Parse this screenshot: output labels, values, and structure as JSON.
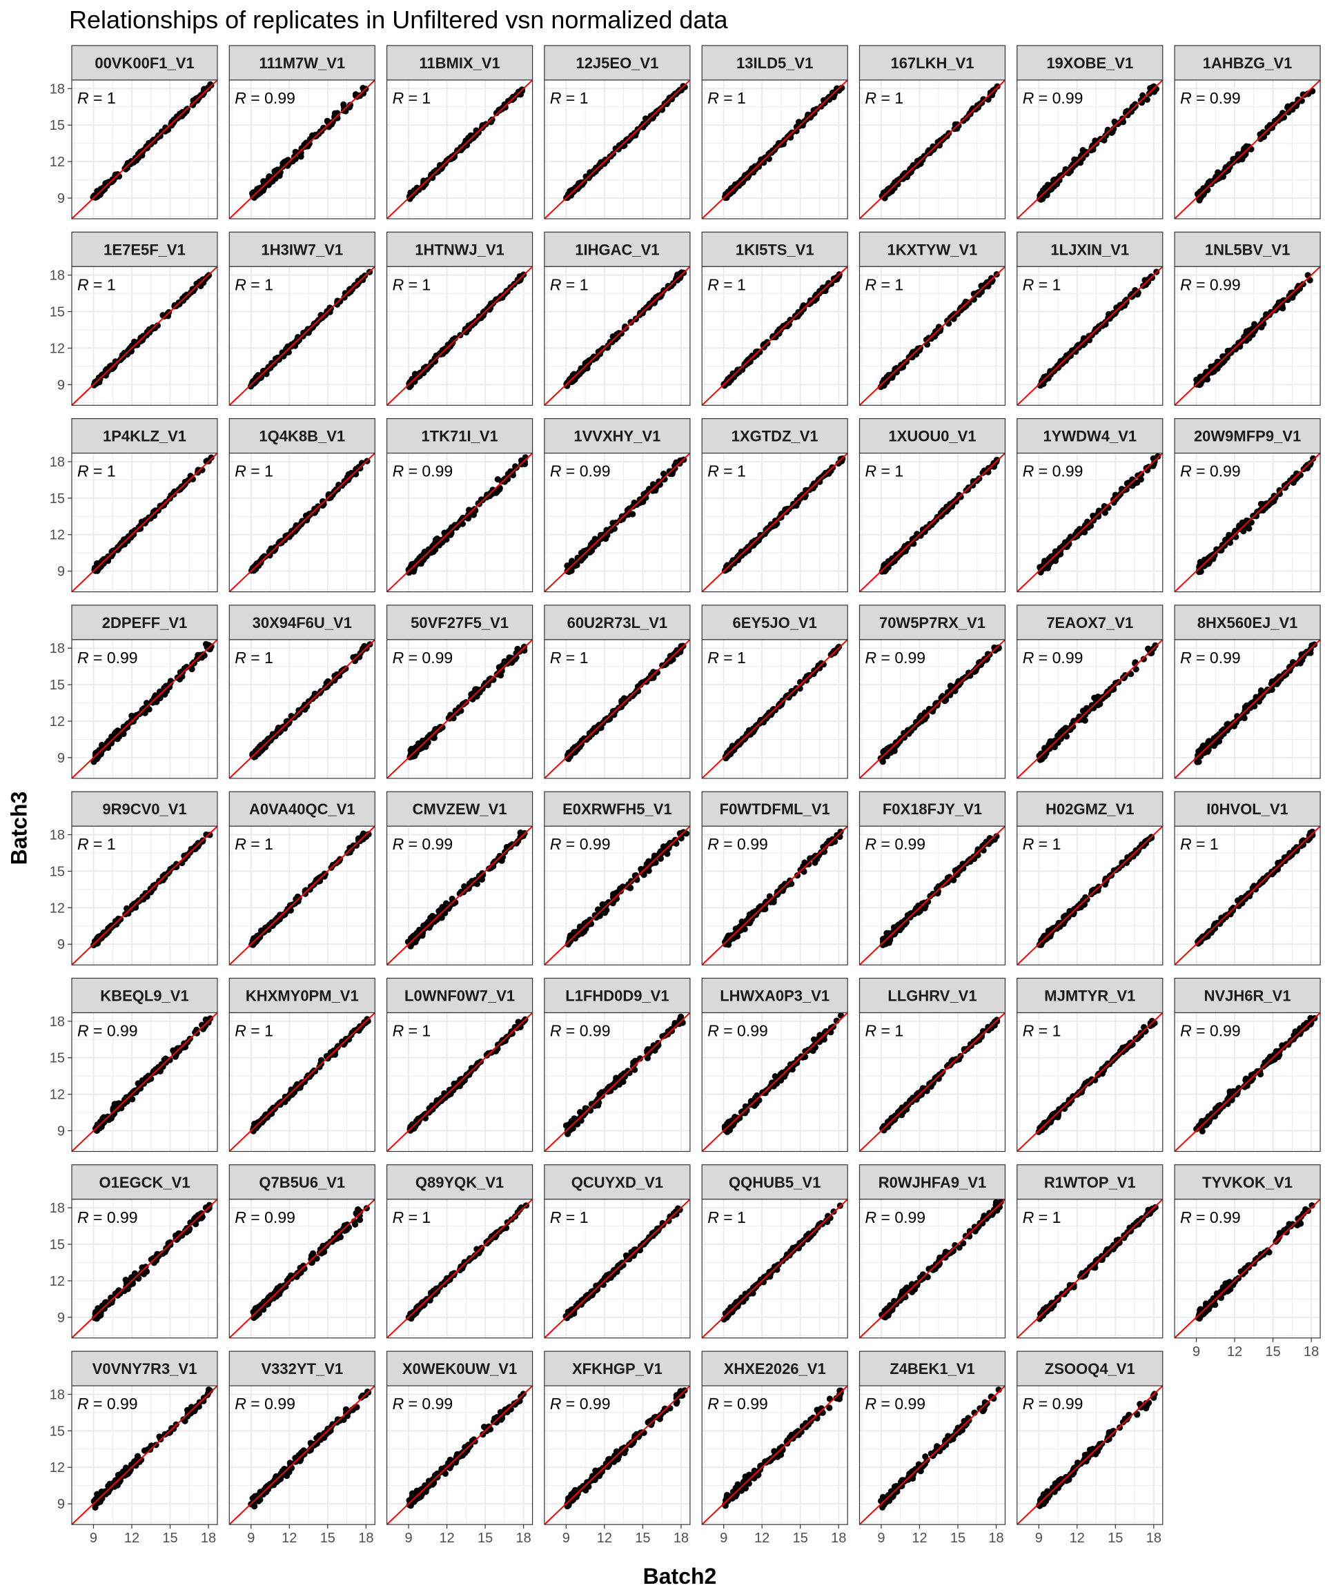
{
  "figure": {
    "title": "Relationships of replicates in Unfiltered vsn normalized data",
    "xlabel": "Batch2",
    "ylabel": "Batch3"
  },
  "colors": {
    "strip_background": "#d9d9d9",
    "panel_border": "#333333",
    "grid": "#ebebeb",
    "points": "#000000",
    "identity_line": "#ff0000"
  },
  "chart_data": {
    "type": "scatter",
    "facet_columns": 8,
    "xlim": [
      7.3,
      18.7
    ],
    "ylim": [
      7.3,
      18.7
    ],
    "x_ticks": [
      9,
      12,
      15,
      18
    ],
    "y_ticks": [
      9,
      12,
      15,
      18
    ],
    "reference_line": "y = x",
    "correlation_label_prefix": "R",
    "grid": true,
    "panels": [
      {
        "name": "00VK00F1_V1",
        "r": "1"
      },
      {
        "name": "111M7W_V1",
        "r": "0.99"
      },
      {
        "name": "11BMIX_V1",
        "r": "1"
      },
      {
        "name": "12J5EO_V1",
        "r": "1"
      },
      {
        "name": "13ILD5_V1",
        "r": "1"
      },
      {
        "name": "167LKH_V1",
        "r": "1"
      },
      {
        "name": "19XOBE_V1",
        "r": "0.99"
      },
      {
        "name": "1AHBZG_V1",
        "r": "0.99"
      },
      {
        "name": "1E7E5F_V1",
        "r": "1"
      },
      {
        "name": "1H3IW7_V1",
        "r": "1"
      },
      {
        "name": "1HTNWJ_V1",
        "r": "1"
      },
      {
        "name": "1IHGAC_V1",
        "r": "1"
      },
      {
        "name": "1KI5TS_V1",
        "r": "1"
      },
      {
        "name": "1KXTYW_V1",
        "r": "1"
      },
      {
        "name": "1LJXIN_V1",
        "r": "1"
      },
      {
        "name": "1NL5BV_V1",
        "r": "0.99"
      },
      {
        "name": "1P4KLZ_V1",
        "r": "1"
      },
      {
        "name": "1Q4K8B_V1",
        "r": "1"
      },
      {
        "name": "1TK71I_V1",
        "r": "0.99"
      },
      {
        "name": "1VVXHY_V1",
        "r": "0.99"
      },
      {
        "name": "1XGTDZ_V1",
        "r": "1"
      },
      {
        "name": "1XUOU0_V1",
        "r": "1"
      },
      {
        "name": "1YWDW4_V1",
        "r": "0.99"
      },
      {
        "name": "20W9MFP9_V1",
        "r": "0.99"
      },
      {
        "name": "2DPEFF_V1",
        "r": "0.99"
      },
      {
        "name": "30X94F6U_V1",
        "r": "1"
      },
      {
        "name": "50VF27F5_V1",
        "r": "0.99"
      },
      {
        "name": "60U2R73L_V1",
        "r": "1"
      },
      {
        "name": "6EY5JO_V1",
        "r": "1"
      },
      {
        "name": "70W5P7RX_V1",
        "r": "0.99"
      },
      {
        "name": "7EAOX7_V1",
        "r": "0.99"
      },
      {
        "name": "8HX560EJ_V1",
        "r": "0.99"
      },
      {
        "name": "9R9CV0_V1",
        "r": "1"
      },
      {
        "name": "A0VA40QC_V1",
        "r": "1"
      },
      {
        "name": "CMVZEW_V1",
        "r": "0.99"
      },
      {
        "name": "E0XRWFH5_V1",
        "r": "0.99"
      },
      {
        "name": "F0WTDFML_V1",
        "r": "0.99"
      },
      {
        "name": "F0X18FJY_V1",
        "r": "0.99"
      },
      {
        "name": "H02GMZ_V1",
        "r": "1"
      },
      {
        "name": "I0HVOL_V1",
        "r": "1"
      },
      {
        "name": "KBEQL9_V1",
        "r": "0.99"
      },
      {
        "name": "KHXMY0PM_V1",
        "r": "1"
      },
      {
        "name": "L0WNF0W7_V1",
        "r": "1"
      },
      {
        "name": "L1FHD0D9_V1",
        "r": "0.99"
      },
      {
        "name": "LHWXA0P3_V1",
        "r": "0.99"
      },
      {
        "name": "LLGHRV_V1",
        "r": "1"
      },
      {
        "name": "MJMTYR_V1",
        "r": "1"
      },
      {
        "name": "NVJH6R_V1",
        "r": "0.99"
      },
      {
        "name": "O1EGCK_V1",
        "r": "0.99"
      },
      {
        "name": "Q7B5U6_V1",
        "r": "0.99"
      },
      {
        "name": "Q89YQK_V1",
        "r": "1"
      },
      {
        "name": "QCUYXD_V1",
        "r": "1"
      },
      {
        "name": "QQHUB5_V1",
        "r": "1"
      },
      {
        "name": "R0WJHFA9_V1",
        "r": "0.99"
      },
      {
        "name": "R1WTOP_V1",
        "r": "1"
      },
      {
        "name": "TYVKOK_V1",
        "r": "0.99"
      },
      {
        "name": "V0VNY7R3_V1",
        "r": "0.99"
      },
      {
        "name": "V332YT_V1",
        "r": "0.99"
      },
      {
        "name": "X0WEK0UW_V1",
        "r": "0.99"
      },
      {
        "name": "XFKHGP_V1",
        "r": "0.99"
      },
      {
        "name": "XHXE2026_V1",
        "r": "0.99"
      },
      {
        "name": "Z4BEK1_V1",
        "r": "0.99"
      },
      {
        "name": "ZSOOQ4_V1",
        "r": "0.99"
      }
    ]
  }
}
